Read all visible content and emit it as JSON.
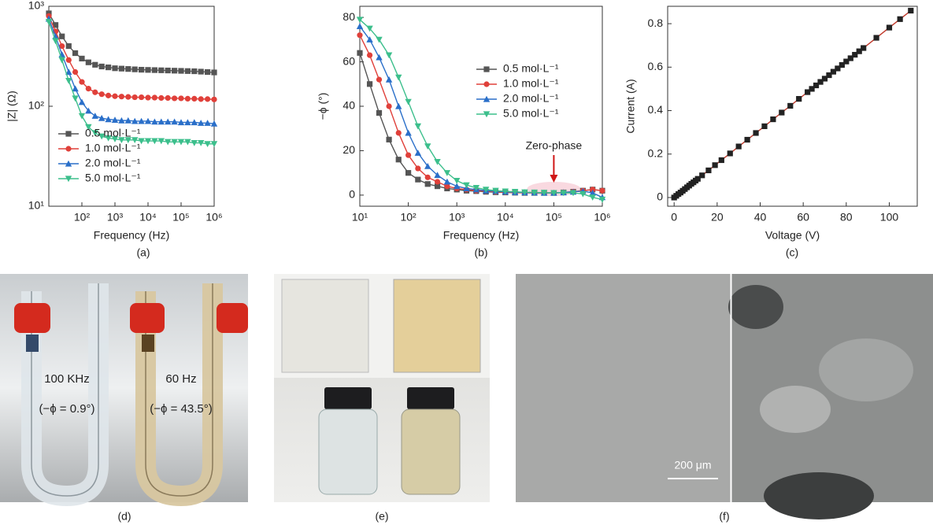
{
  "chart_data": [
    {
      "type": "line",
      "label": "(a)",
      "xlabel": "Frequency (Hz)",
      "ylabel": "|Z| (Ω)",
      "xscale": "log",
      "yscale": "log",
      "legend": "lower left",
      "xlim": [
        10,
        1000000
      ],
      "ylim": [
        10,
        1000
      ],
      "xticks": [
        {
          "value": 100,
          "label": "10²"
        },
        {
          "value": 1000,
          "label": "10³"
        },
        {
          "value": 10000,
          "label": "10⁴"
        },
        {
          "value": 100000,
          "label": "10⁵"
        },
        {
          "value": 1000000,
          "label": "10⁶"
        }
      ],
      "yticks": [
        {
          "value": 10,
          "label": "10¹"
        },
        {
          "value": 100,
          "label": "10²"
        },
        {
          "value": 1000,
          "label": "10³"
        }
      ],
      "x": [
        10,
        16,
        25,
        40,
        63,
        100,
        158,
        251,
        398,
        631,
        1000,
        1585,
        2512,
        3981,
        6310,
        10000,
        15849,
        25119,
        39811,
        63096,
        100000,
        158489,
        251189,
        398107,
        630957,
        1000000
      ],
      "series": [
        {
          "name": "0.5 mol·L⁻¹",
          "color": "#555555",
          "marker": "square",
          "values": [
            850,
            650,
            500,
            400,
            340,
            300,
            275,
            260,
            250,
            245,
            240,
            238,
            236,
            234,
            232,
            231,
            230,
            229,
            228,
            227,
            226,
            225,
            224,
            222,
            220,
            218
          ]
        },
        {
          "name": "1.0 mol·L⁻¹",
          "color": "#e0403a",
          "marker": "circle",
          "values": [
            800,
            560,
            400,
            290,
            220,
            175,
            150,
            138,
            132,
            128,
            126,
            125,
            124,
            123,
            123,
            122,
            122,
            121,
            121,
            120,
            120,
            119,
            119,
            118,
            118,
            117
          ]
        },
        {
          "name": "2.0 mol·L⁻¹",
          "color": "#2a6fc9",
          "marker": "triangle-up",
          "values": [
            750,
            500,
            330,
            220,
            150,
            110,
            90,
            80,
            76,
            74,
            73,
            72,
            72,
            71,
            71,
            71,
            70,
            70,
            70,
            70,
            69,
            69,
            69,
            68,
            68,
            67
          ]
        },
        {
          "name": "5.0 mol·L⁻¹",
          "color": "#3cbf8c",
          "marker": "triangle-down",
          "values": [
            700,
            450,
            290,
            180,
            120,
            80,
            62,
            54,
            50,
            48,
            47,
            46,
            46,
            46,
            45,
            45,
            45,
            45,
            44,
            44,
            44,
            44,
            43,
            43,
            42,
            42
          ]
        }
      ]
    },
    {
      "type": "line",
      "label": "(b)",
      "xlabel": "Frequency (Hz)",
      "ylabel": "−ϕ (°)",
      "xscale": "log",
      "yscale": "linear",
      "legend": "upper right",
      "annotation": "Zero-phase",
      "xlim": [
        10,
        1000000
      ],
      "ylim": [
        -5,
        85
      ],
      "xticks": [
        {
          "value": 10,
          "label": "10¹"
        },
        {
          "value": 100,
          "label": "10²"
        },
        {
          "value": 1000,
          "label": "10³"
        },
        {
          "value": 10000,
          "label": "10⁴"
        },
        {
          "value": 100000,
          "label": "10⁵"
        },
        {
          "value": 1000000,
          "label": "10⁶"
        }
      ],
      "yticks": [
        0,
        20,
        40,
        60,
        80
      ],
      "x": [
        10,
        16,
        25,
        40,
        63,
        100,
        158,
        251,
        398,
        631,
        1000,
        1585,
        2512,
        3981,
        6310,
        10000,
        15849,
        25119,
        39811,
        63096,
        100000,
        158489,
        251189,
        398107,
        630957,
        1000000
      ],
      "series": [
        {
          "name": "0.5 mol·L⁻¹",
          "color": "#555555",
          "marker": "square",
          "values": [
            64,
            50,
            37,
            25,
            16,
            10,
            7,
            5,
            4,
            3,
            2.5,
            2,
            1.8,
            1.5,
            1.3,
            1.2,
            1.1,
            1,
            1,
            1,
            1,
            1.2,
            1.5,
            2,
            2.5,
            2
          ]
        },
        {
          "name": "1.0 mol·L⁻¹",
          "color": "#e0403a",
          "marker": "circle",
          "values": [
            72,
            63,
            52,
            40,
            28,
            18,
            12,
            8,
            6,
            4,
            3,
            2.5,
            2,
            1.8,
            1.5,
            1.3,
            1.2,
            1.1,
            1,
            1,
            1,
            1.2,
            1.5,
            2,
            2.5,
            2
          ]
        },
        {
          "name": "2.0 mol·L⁻¹",
          "color": "#2a6fc9",
          "marker": "triangle-up",
          "values": [
            76,
            70,
            62,
            52,
            40,
            28,
            19,
            13,
            9,
            6,
            4,
            3,
            2.5,
            2,
            1.8,
            1.5,
            1.3,
            1.2,
            1.1,
            1,
            1,
            1.2,
            1.5,
            1.8,
            1,
            -1
          ]
        },
        {
          "name": "5.0 mol·L⁻¹",
          "color": "#3cbf8c",
          "marker": "triangle-down",
          "values": [
            79,
            75,
            70,
            63,
            53,
            42,
            31,
            22,
            15,
            10,
            6.5,
            4.5,
            3.3,
            2.5,
            2,
            1.7,
            1.5,
            1.3,
            1.2,
            1.1,
            1,
            1,
            1,
            0.5,
            -1,
            -2
          ]
        }
      ]
    },
    {
      "type": "line",
      "label": "(c)",
      "xlabel": "Voltage (V)",
      "ylabel": "Current (A)",
      "xscale": "linear",
      "yscale": "linear",
      "xlim": [
        -3,
        113
      ],
      "ylim": [
        -0.04,
        0.88
      ],
      "xticks": [
        0,
        20,
        40,
        60,
        80,
        100
      ],
      "yticks": [
        0,
        0.2,
        0.4,
        0.6,
        0.8
      ],
      "x": [
        0,
        1,
        2,
        3,
        4,
        5,
        6,
        7,
        8,
        9,
        10,
        11,
        13,
        16,
        19,
        22,
        26,
        30,
        34,
        38,
        42,
        46,
        50,
        54,
        58,
        62,
        64,
        66,
        68,
        70,
        72,
        74,
        76,
        78,
        80,
        82,
        84,
        86,
        88,
        94,
        100,
        105,
        110
      ],
      "series": [
        {
          "color": "#c0392b",
          "marker": "square",
          "marker_color": "#222222",
          "values": [
            0,
            0.008,
            0.016,
            0.023,
            0.031,
            0.039,
            0.047,
            0.055,
            0.063,
            0.07,
            0.078,
            0.086,
            0.102,
            0.125,
            0.149,
            0.172,
            0.203,
            0.235,
            0.266,
            0.297,
            0.328,
            0.36,
            0.391,
            0.422,
            0.454,
            0.485,
            0.5,
            0.516,
            0.532,
            0.547,
            0.563,
            0.579,
            0.594,
            0.61,
            0.626,
            0.641,
            0.657,
            0.673,
            0.688,
            0.735,
            0.782,
            0.821,
            0.86
          ]
        }
      ]
    }
  ],
  "panels": [
    {
      "label": "(d)",
      "texts": [
        "100 KHz",
        "(−ϕ = 0.9°)",
        "60 Hz",
        "(−ϕ = 43.5°)"
      ]
    },
    {
      "label": "(e)"
    },
    {
      "label": "(f)",
      "texts": [
        "200 μm"
      ]
    }
  ]
}
